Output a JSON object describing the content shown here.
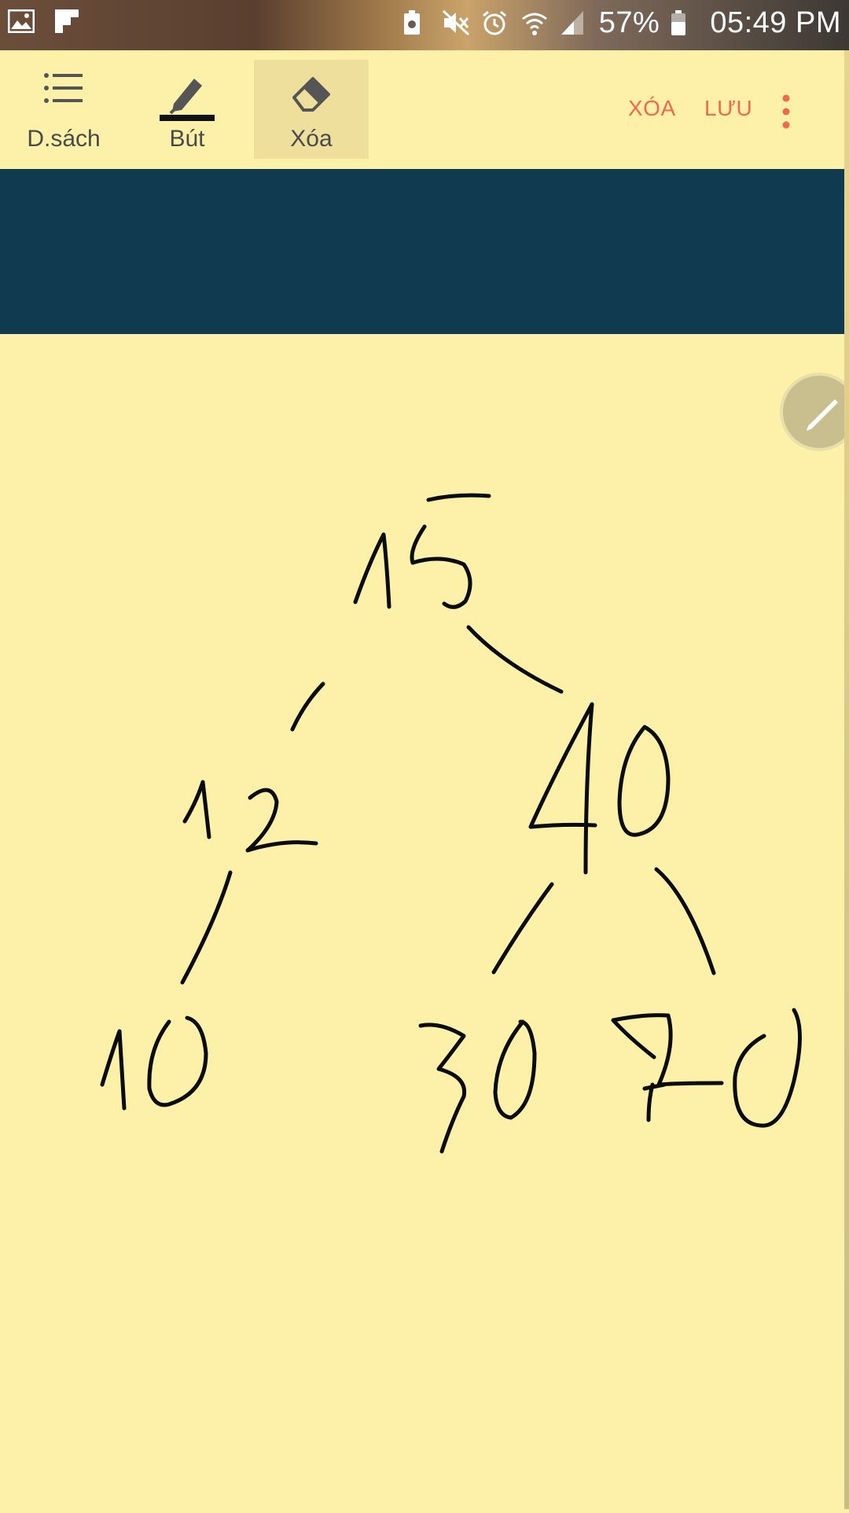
{
  "status_bar": {
    "battery": "57%",
    "time": "05:49 PM",
    "icons": [
      "gallery-icon",
      "flipboard-icon",
      "battery-saver-icon",
      "mute-icon",
      "alarm-icon",
      "wifi-icon",
      "signal-icon",
      "battery-icon"
    ]
  },
  "toolbar": {
    "list_label": "D.sách",
    "pen_label": "Bút",
    "eraser_label": "Xóa",
    "active_tool": "eraser",
    "clear_label": "XÓA",
    "save_label": "LƯU",
    "more_icon": "more-vert-icon",
    "accent_color": "#ef6a4c"
  },
  "colors": {
    "paper": "#fdf0a8",
    "banner": "#0f3a4f",
    "ink": "#0b0b0b"
  },
  "fab": {
    "icon": "pencil-icon"
  }
}
